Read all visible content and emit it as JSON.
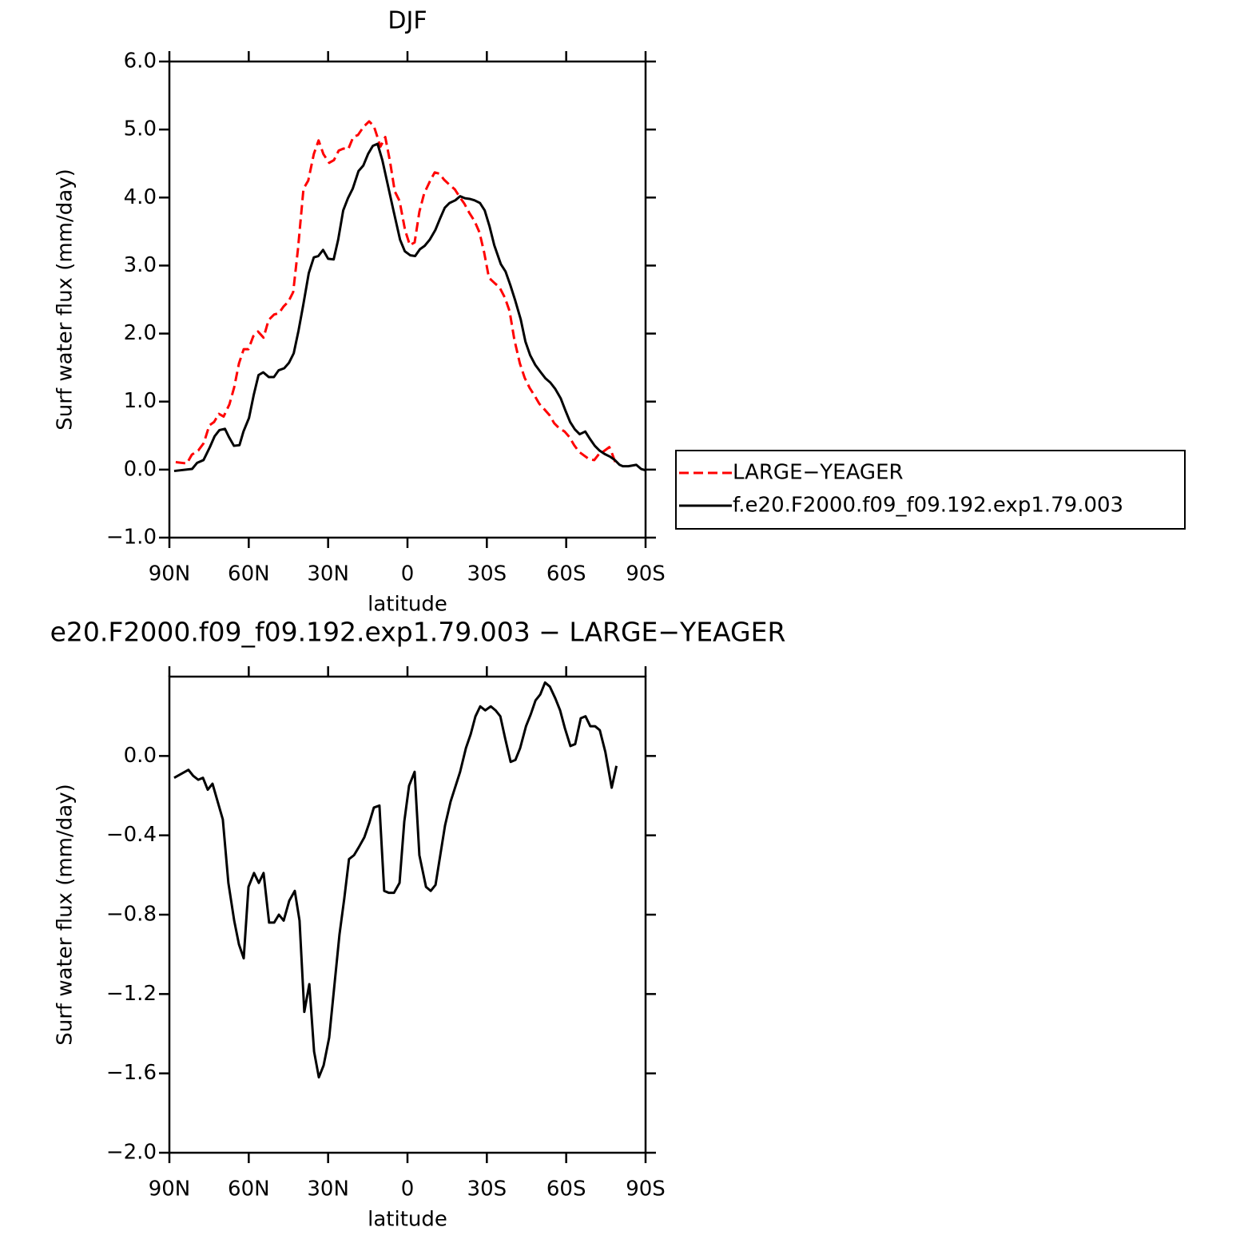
{
  "chart_data": [
    {
      "type": "line",
      "title": "DJF",
      "xlabel": "latitude",
      "ylabel": "Surf water flux (mm/day)",
      "xlim": [
        90,
        -90
      ],
      "xticks": [
        {
          "value": 90,
          "label": "90N"
        },
        {
          "value": 60,
          "label": "60N"
        },
        {
          "value": 30,
          "label": "30N"
        },
        0,
        {
          "value": -30,
          "label": "30S"
        },
        {
          "value": -60,
          "label": "60S"
        },
        {
          "value": -90,
          "label": "90S"
        }
      ],
      "ylim": [
        -1,
        6
      ],
      "yticks": [
        {
          "value": -1,
          "label": "−1.0"
        },
        {
          "value": 0,
          "label": "0.0"
        },
        {
          "value": 1,
          "label": "1.0"
        },
        {
          "value": 2,
          "label": "2.0"
        },
        {
          "value": 3,
          "label": "3.0"
        },
        {
          "value": 4,
          "label": "4.0"
        },
        {
          "value": 5,
          "label": "5.0"
        },
        {
          "value": 6,
          "label": "6.0"
        }
      ],
      "legend": "right",
      "series": [
        {
          "name": "LARGE−YEAGER",
          "color": "#ff0000",
          "dashed": true,
          "x": [
            87.6,
            83.4,
            81.5,
            79.1,
            77,
            74.9,
            73.1,
            71.3,
            69.5,
            67.3,
            65.5,
            63.7,
            61.9,
            60.1,
            58.3,
            56.5,
            54.4,
            52.5,
            50.4,
            48.6,
            46.8,
            45,
            43.2,
            41.4,
            39.3,
            37.5,
            35.4,
            33.6,
            31.8,
            29.6,
            27.8,
            26,
            24.2,
            22.4,
            20.5,
            18.7,
            16.6,
            14.5,
            12.7,
            10.2,
            8.4,
            6.6,
            4.8,
            3,
            0.9,
            -0.9,
            -2.7,
            -4.5,
            -6.3,
            -8.5,
            -10.3,
            -12.1,
            -13.9,
            -16.1,
            -17.9,
            -19.7,
            -21.5,
            -23.3,
            -25.4,
            -27.2,
            -29,
            -30.8,
            -33,
            -34.8,
            -36.8,
            -38.6,
            -40.4,
            -42.5,
            -44.3,
            -46.2,
            -48,
            -49.8,
            -51.9,
            -53.7,
            -55.5,
            -57.3,
            -59.4,
            -61.2,
            -63,
            -64.9,
            -67,
            -68.8,
            -70.6,
            -72.4,
            -74.2,
            -76.3,
            -77.5,
            -78.7
          ],
          "values": [
            0.11,
            0.09,
            0.22,
            0.28,
            0.39,
            0.65,
            0.7,
            0.82,
            0.78,
            0.96,
            1.21,
            1.56,
            1.77,
            1.77,
            1.96,
            2.03,
            1.94,
            2.2,
            2.28,
            2.3,
            2.4,
            2.47,
            2.61,
            3.24,
            4.13,
            4.25,
            4.64,
            4.84,
            4.64,
            4.51,
            4.55,
            4.69,
            4.72,
            4.71,
            4.89,
            4.92,
            5.04,
            5.12,
            5.05,
            4.75,
            4.89,
            4.53,
            4.09,
            3.95,
            3.52,
            3.3,
            3.34,
            3.79,
            4.06,
            4.24,
            4.37,
            4.35,
            4.26,
            4.18,
            4.12,
            4.01,
            3.91,
            3.78,
            3.65,
            3.49,
            3.19,
            2.82,
            2.74,
            2.68,
            2.53,
            2.33,
            1.91,
            1.56,
            1.35,
            1.2,
            1.09,
            0.97,
            0.88,
            0.8,
            0.68,
            0.61,
            0.56,
            0.48,
            0.36,
            0.26,
            0.2,
            0.15,
            0.14,
            0.23,
            0.27,
            0.33,
            0.22,
            0.09
          ]
        },
        {
          "name": "f.e20.F2000.f09_f09.192.exp1.79.003",
          "color": "#000000",
          "dashed": false,
          "x": [
            88.2,
            81.4,
            79.5,
            77.1,
            74.7,
            72.9,
            71.1,
            69,
            67.5,
            65.6,
            63.5,
            62,
            59.9,
            58.1,
            56.3,
            54.5,
            52.4,
            50.5,
            48.7,
            46.6,
            44.8,
            43,
            41.2,
            39.4,
            37.3,
            35.4,
            33.7,
            31.9,
            30,
            27.9,
            26.2,
            24.3,
            22.5,
            20.7,
            18.5,
            16.7,
            14.9,
            13.1,
            11.3,
            9.5,
            7.4,
            5.3,
            2.8,
            1,
            -1.1,
            -2.9,
            -4.7,
            -6.5,
            -8.4,
            -10.5,
            -12.3,
            -14.1,
            -15.9,
            -18.1,
            -19.9,
            -21.7,
            -23.5,
            -25.3,
            -27.4,
            -29.2,
            -31,
            -32.8,
            -35.3,
            -37.1,
            -38.9,
            -40.7,
            -42.8,
            -44.6,
            -46.4,
            -48.3,
            -50.4,
            -52.2,
            -54,
            -55.8,
            -57.9,
            -59.7,
            -61.5,
            -63.3,
            -65.1,
            -67.2,
            -69,
            -70.8,
            -72.6,
            -74.5,
            -76.6,
            -78.4,
            -80.2,
            -81.4,
            -83.5,
            -86.5,
            -88.3,
            -90
          ],
          "values": [
            -0.02,
            0.01,
            0.1,
            0.14,
            0.33,
            0.49,
            0.58,
            0.6,
            0.48,
            0.35,
            0.36,
            0.56,
            0.76,
            1.1,
            1.39,
            1.43,
            1.36,
            1.36,
            1.46,
            1.49,
            1.57,
            1.71,
            2.04,
            2.42,
            2.89,
            3.12,
            3.14,
            3.23,
            3.1,
            3.09,
            3.38,
            3.81,
            3.99,
            4.13,
            4.39,
            4.47,
            4.64,
            4.76,
            4.79,
            4.55,
            4.18,
            3.81,
            3.38,
            3.21,
            3.15,
            3.14,
            3.24,
            3.29,
            3.38,
            3.52,
            3.69,
            3.85,
            3.92,
            3.96,
            4.02,
            3.99,
            3.98,
            3.96,
            3.92,
            3.81,
            3.58,
            3.3,
            3.02,
            2.91,
            2.71,
            2.49,
            2.21,
            1.88,
            1.68,
            1.54,
            1.43,
            1.34,
            1.28,
            1.19,
            1.05,
            0.87,
            0.7,
            0.59,
            0.52,
            0.56,
            0.45,
            0.35,
            0.28,
            0.23,
            0.19,
            0.14,
            0.07,
            0.05,
            0.05,
            0.07,
            0.01,
            -0.01
          ]
        }
      ]
    },
    {
      "type": "line",
      "title": "e20.F2000.f09_f09.192.exp1.79.003 − LARGE−YEAGER",
      "xlabel": "latitude",
      "ylabel": "Surf water flux (mm/day)",
      "xlim": [
        90,
        -90
      ],
      "xticks": [
        {
          "value": 90,
          "label": "90N"
        },
        {
          "value": 60,
          "label": "60N"
        },
        {
          "value": 30,
          "label": "30N"
        },
        0,
        {
          "value": -30,
          "label": "30S"
        },
        {
          "value": -60,
          "label": "60S"
        },
        {
          "value": -90,
          "label": "90S"
        }
      ],
      "ylim": [
        -2,
        0.4
      ],
      "yticks": [
        {
          "value": -2,
          "label": "−2.0"
        },
        {
          "value": -1.6,
          "label": "−1.6"
        },
        {
          "value": -1.2,
          "label": "−1.2"
        },
        {
          "value": -0.8,
          "label": "−0.8"
        },
        {
          "value": -0.4,
          "label": "−0.4"
        },
        {
          "value": 0,
          "label": "0.0"
        }
      ],
      "color": "#000000",
      "x": [
        88.2,
        82.8,
        81,
        79.1,
        77.3,
        75.5,
        73.7,
        69.8,
        67.7,
        65.5,
        63.7,
        61.9,
        60.1,
        58,
        56.2,
        54.4,
        52.3,
        50.4,
        48.6,
        46.8,
        44.7,
        42.6,
        40.8,
        39,
        37.1,
        35.3,
        33.5,
        31.7,
        29.6,
        27.8,
        25.7,
        23.9,
        22.1,
        20.2,
        18.4,
        16.3,
        14.5,
        12.7,
        10.6,
        8.8,
        7,
        5.1,
        3,
        1.2,
        -0.6,
        -2.7,
        -4.5,
        -7,
        -8.8,
        -10.6,
        -12.4,
        -14.2,
        -16.3,
        -19.9,
        -22.1,
        -23.9,
        -25.7,
        -27.5,
        -29.4,
        -31.5,
        -33.3,
        -35.1,
        -36.9,
        -39,
        -40.8,
        -42.6,
        -44.8,
        -46.6,
        -48.4,
        -50.2,
        -52,
        -53.8,
        -55.9,
        -57.7,
        -59.5,
        -61.6,
        -63.4,
        -65.5,
        -67.3,
        -69.1,
        -70.9,
        -72.7,
        -74.8,
        -77.2,
        -79
      ],
      "values": [
        -0.11,
        -0.07,
        -0.1,
        -0.12,
        -0.11,
        -0.17,
        -0.14,
        -0.32,
        -0.64,
        -0.83,
        -0.95,
        -1.02,
        -0.66,
        -0.59,
        -0.64,
        -0.59,
        -0.84,
        -0.84,
        -0.8,
        -0.83,
        -0.73,
        -0.68,
        -0.83,
        -1.29,
        -1.15,
        -1.49,
        -1.62,
        -1.56,
        -1.42,
        -1.18,
        -0.9,
        -0.72,
        -0.52,
        -0.5,
        -0.46,
        -0.41,
        -0.34,
        -0.26,
        -0.25,
        -0.68,
        -0.69,
        -0.69,
        -0.64,
        -0.33,
        -0.15,
        -0.08,
        -0.5,
        -0.66,
        -0.68,
        -0.65,
        -0.5,
        -0.35,
        -0.23,
        -0.08,
        0.04,
        0.11,
        0.2,
        0.25,
        0.23,
        0.25,
        0.23,
        0.2,
        0.09,
        -0.03,
        -0.02,
        0.04,
        0.15,
        0.21,
        0.28,
        0.31,
        0.37,
        0.35,
        0.29,
        0.23,
        0.14,
        0.05,
        0.06,
        0.19,
        0.2,
        0.15,
        0.15,
        0.13,
        0.02,
        -0.16,
        -0.05
      ]
    }
  ]
}
